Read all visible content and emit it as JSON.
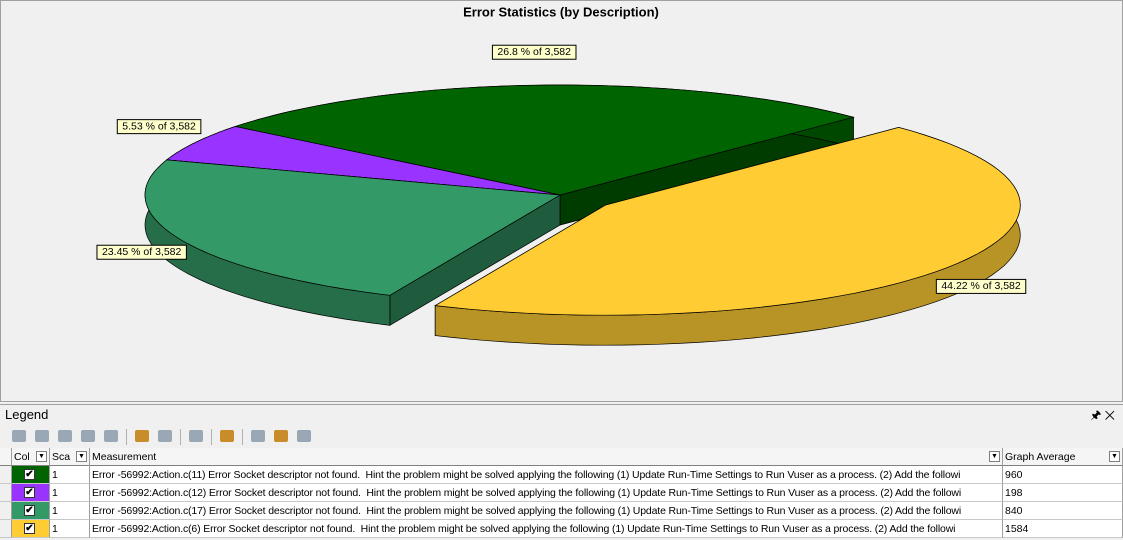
{
  "chart_data": {
    "type": "pie",
    "title": "Error Statistics (by Description)",
    "values": [
      26.8,
      5.53,
      23.45,
      44.22
    ],
    "value_labels": [
      "26.8 % of 3,582",
      "5.53 % of 3,582",
      "23.45 % of 3,582",
      "44.22 % of 3,582"
    ],
    "colors": [
      "#006400",
      "#9933ff",
      "#339966",
      "#ffcc33"
    ],
    "exploded": [
      false,
      false,
      false,
      true
    ]
  },
  "legend": {
    "title": "Legend",
    "columns": [
      "Col",
      "Sca",
      "Measurement",
      "Graph Average"
    ],
    "rows": [
      {
        "scale": 1,
        "measurement": "Error -56992:Action.c(11) Error Socket descriptor not found.  Hint the problem might be solved applying the following (1) Update Run-Time Settings to Run Vuser as a process. (2) Add the followi",
        "graph_average": 960
      },
      {
        "scale": 1,
        "measurement": "Error -56992:Action.c(12) Error Socket descriptor not found.  Hint the problem might be solved applying the following (1) Update Run-Time Settings to Run Vuser as a process. (2) Add the followi",
        "graph_average": 198
      },
      {
        "scale": 1,
        "measurement": "Error -56992:Action.c(17) Error Socket descriptor not found.  Hint the problem might be solved applying the following (1) Update Run-Time Settings to Run Vuser as a process. (2) Add the followi",
        "graph_average": 840
      },
      {
        "scale": 1,
        "measurement": "Error -56992:Action.c(6) Error Socket descriptor not found.  Hint the problem might be solved applying the following (1) Update Run-Time Settings to Run Vuser as a process. (2) Add the followi",
        "graph_average": 1584
      }
    ]
  }
}
